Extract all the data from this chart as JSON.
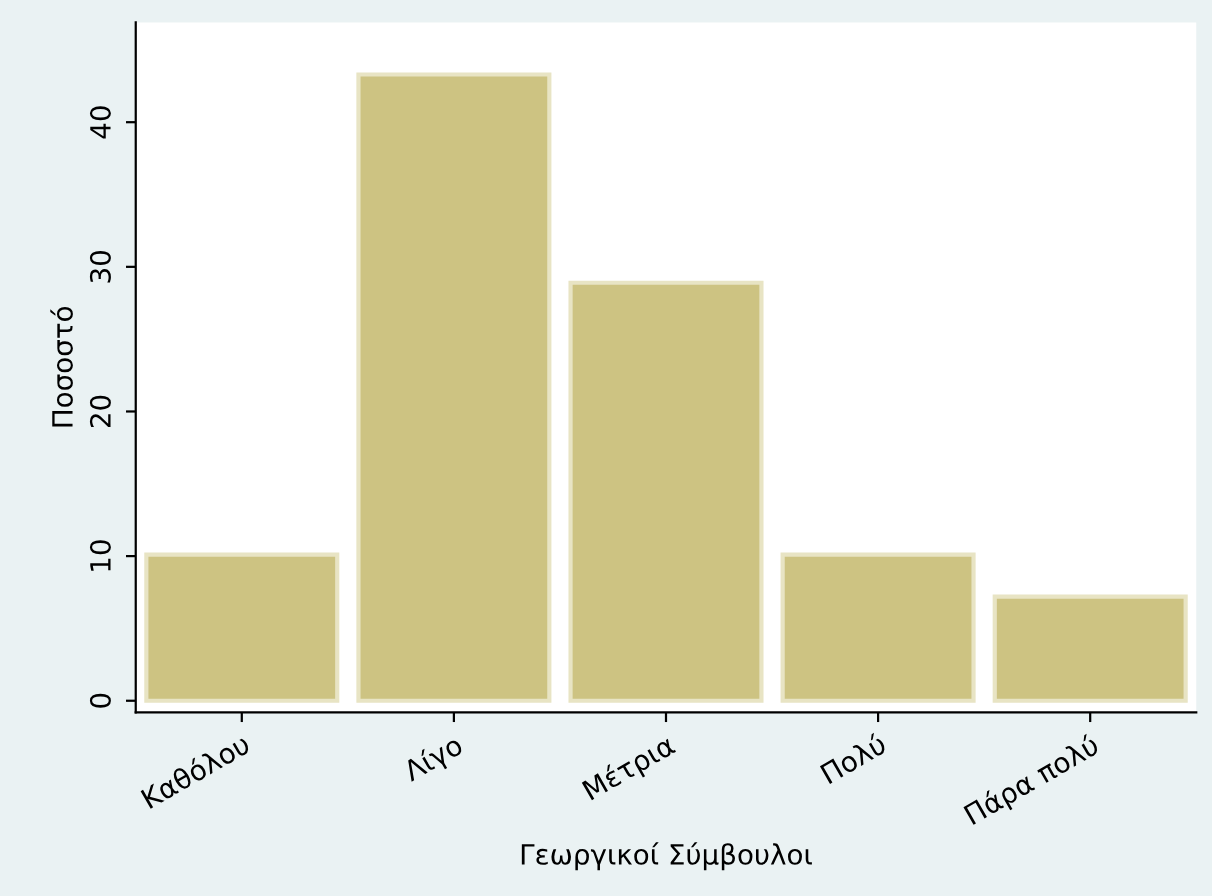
{
  "chart_data": {
    "type": "bar",
    "xlabel": "Γεωργικοί Σύμβουλοι",
    "ylabel": "Ποσοστό",
    "categories": [
      "Καθόλου",
      "Λίγο",
      "Μέτρια",
      "Πολύ",
      "Πάρα πολύ"
    ],
    "values": [
      10.1,
      43.3,
      28.9,
      10.1,
      7.2
    ],
    "color": "#cdc382",
    "ylim": [
      -0.8,
      46.9
    ],
    "yticks": [
      0,
      10,
      20,
      30,
      40
    ],
    "grid": false
  }
}
